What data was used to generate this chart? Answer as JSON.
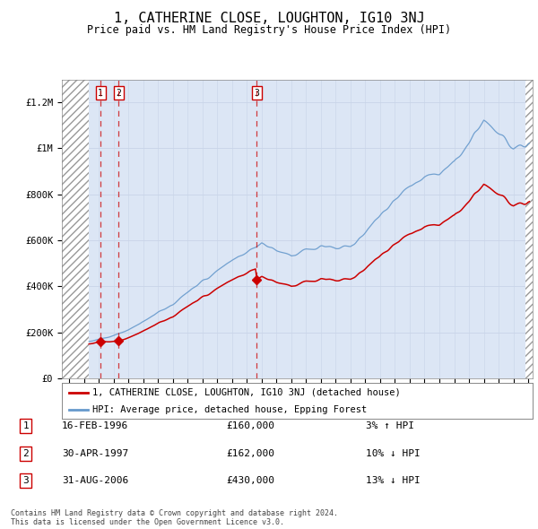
{
  "title": "1, CATHERINE CLOSE, LOUGHTON, IG10 3NJ",
  "subtitle": "Price paid vs. HM Land Registry's House Price Index (HPI)",
  "title_fontsize": 11,
  "subtitle_fontsize": 8.5,
  "ylabel_ticks": [
    "£0",
    "£200K",
    "£400K",
    "£600K",
    "£800K",
    "£1M",
    "£1.2M"
  ],
  "ytick_values": [
    0,
    200000,
    400000,
    600000,
    800000,
    1000000,
    1200000
  ],
  "ylim": [
    0,
    1300000
  ],
  "xlim_start": 1993.5,
  "xlim_end": 2025.3,
  "transactions": [
    {
      "num": 1,
      "date": "16-FEB-1996",
      "price": 160000,
      "year": 1996.12,
      "price_str": "£160,000",
      "hpi_diff": "3% ↑ HPI"
    },
    {
      "num": 2,
      "date": "30-APR-1997",
      "price": 162000,
      "year": 1997.33,
      "price_str": "£162,000",
      "hpi_diff": "10% ↓ HPI"
    },
    {
      "num": 3,
      "date": "31-AUG-2006",
      "price": 430000,
      "year": 2006.66,
      "price_str": "£430,000",
      "hpi_diff": "13% ↓ HPI"
    }
  ],
  "legend_line1": "1, CATHERINE CLOSE, LOUGHTON, IG10 3NJ (detached house)",
  "legend_line2": "HPI: Average price, detached house, Epping Forest",
  "red_color": "#cc0000",
  "blue_color": "#6699cc",
  "grid_color": "#c8d4e8",
  "background_color": "#ffffff",
  "plot_bg_color": "#dce6f5",
  "footnote": "Contains HM Land Registry data © Crown copyright and database right 2024.\nThis data is licensed under the Open Government Licence v3.0.",
  "data_start_year": 1995.3,
  "data_end_year": 2024.8,
  "hpi_scale_at_t1": 1.65,
  "hpi_scale_at_t2": 1.48,
  "hpi_scale_at_t3": 1.07
}
